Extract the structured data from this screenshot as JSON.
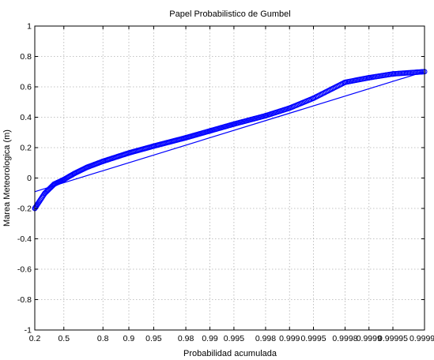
{
  "chart_data": {
    "type": "scatter",
    "title": "Papel Probabilistico de Gumbel",
    "xlabel": "Probabilidad acumulada",
    "ylabel": "Marea Meteorologica (m)",
    "x_scale": "gumbel-reduced-variate",
    "xlim": [
      0.2,
      0.99998
    ],
    "ylim": [
      -1,
      1
    ],
    "grid": true,
    "x_ticks": [
      {
        "p": 0.2,
        "label": "0.2"
      },
      {
        "p": 0.5,
        "label": "0.5"
      },
      {
        "p": 0.8,
        "label": "0.8"
      },
      {
        "p": 0.9,
        "label": "0.9"
      },
      {
        "p": 0.95,
        "label": "0.95"
      },
      {
        "p": 0.98,
        "label": "0.98"
      },
      {
        "p": 0.99,
        "label": "0.99"
      },
      {
        "p": 0.995,
        "label": "0.995"
      },
      {
        "p": 0.998,
        "label": "0.998"
      },
      {
        "p": 0.999,
        "label": "0.999"
      },
      {
        "p": 0.9995,
        "label": "0.9995"
      },
      {
        "p": 0.9998,
        "label": "0.9998"
      },
      {
        "p": 0.9999,
        "label": "0.9999"
      },
      {
        "p": 0.99995,
        "label": "0.99995"
      },
      {
        "p": 0.99998,
        "label": "0.99998"
      }
    ],
    "y_ticks": [
      {
        "v": -1,
        "label": "-1"
      },
      {
        "v": -0.8,
        "label": "-0.8"
      },
      {
        "v": -0.6,
        "label": "-0.6"
      },
      {
        "v": -0.4,
        "label": "-0.4"
      },
      {
        "v": -0.2,
        "label": "-0.2"
      },
      {
        "v": 0,
        "label": "0"
      },
      {
        "v": 0.2,
        "label": "0.2"
      },
      {
        "v": 0.4,
        "label": "0.4"
      },
      {
        "v": 0.6,
        "label": "0.6"
      },
      {
        "v": 0.8,
        "label": "0.8"
      },
      {
        "v": 1,
        "label": "1"
      }
    ],
    "series": [
      {
        "marker": "circle",
        "color": "#0000ff",
        "points": [
          {
            "x": 0.2,
            "y": -0.2
          },
          {
            "x": 0.3,
            "y": -0.1
          },
          {
            "x": 0.4,
            "y": -0.04
          },
          {
            "x": 0.5,
            "y": -0.01
          },
          {
            "x": 0.6,
            "y": 0.03
          },
          {
            "x": 0.7,
            "y": 0.07
          },
          {
            "x": 0.8,
            "y": 0.11
          },
          {
            "x": 0.9,
            "y": 0.165
          },
          {
            "x": 0.95,
            "y": 0.21
          },
          {
            "x": 0.98,
            "y": 0.265
          },
          {
            "x": 0.99,
            "y": 0.31
          },
          {
            "x": 0.995,
            "y": 0.355
          },
          {
            "x": 0.998,
            "y": 0.41
          },
          {
            "x": 0.999,
            "y": 0.46
          },
          {
            "x": 0.9995,
            "y": 0.525
          },
          {
            "x": 0.9998,
            "y": 0.63
          },
          {
            "x": 0.9999,
            "y": 0.66
          },
          {
            "x": 0.99995,
            "y": 0.685
          },
          {
            "x": 0.99998,
            "y": 0.7
          }
        ]
      },
      {
        "type": "line",
        "color": "#0000ff",
        "points": [
          {
            "x": 0.2,
            "y": -0.09
          },
          {
            "x": 0.99998,
            "y": 0.7
          }
        ]
      }
    ]
  }
}
